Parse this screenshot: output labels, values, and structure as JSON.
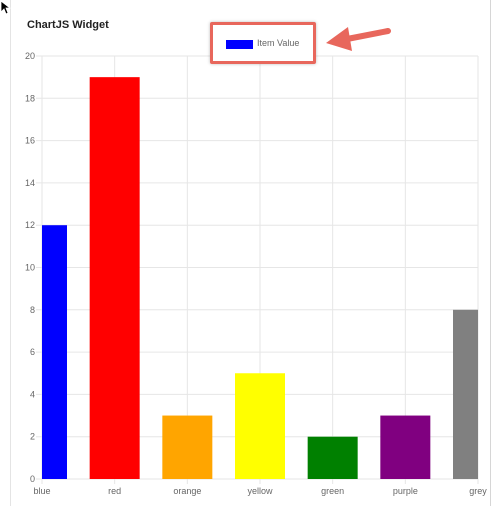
{
  "widget": {
    "title": "ChartJS Widget"
  },
  "colors": {
    "annotation": "#e8675c",
    "grid": "#e6e6e6",
    "tick_text": "#666666"
  },
  "annotation": {
    "box_icon": "highlight-box",
    "arrow_icon": "arrow-left-icon"
  },
  "chart_data": {
    "type": "bar",
    "categories": [
      "blue",
      "red",
      "orange",
      "yellow",
      "green",
      "purple",
      "grey"
    ],
    "series": [
      {
        "name": "Item Value",
        "values": [
          12,
          19,
          3,
          5,
          2,
          3,
          8
        ],
        "colors": [
          "#0000ff",
          "#ff0000",
          "#ffa500",
          "#ffff00",
          "#008000",
          "#800080",
          "#808080"
        ]
      }
    ],
    "legend_swatch_color": "#0000ff",
    "ylim": [
      0,
      20
    ],
    "yticks": [
      0,
      2,
      4,
      6,
      8,
      10,
      12,
      14,
      16,
      18,
      20
    ],
    "grid": true,
    "legend_position": "top-center"
  }
}
